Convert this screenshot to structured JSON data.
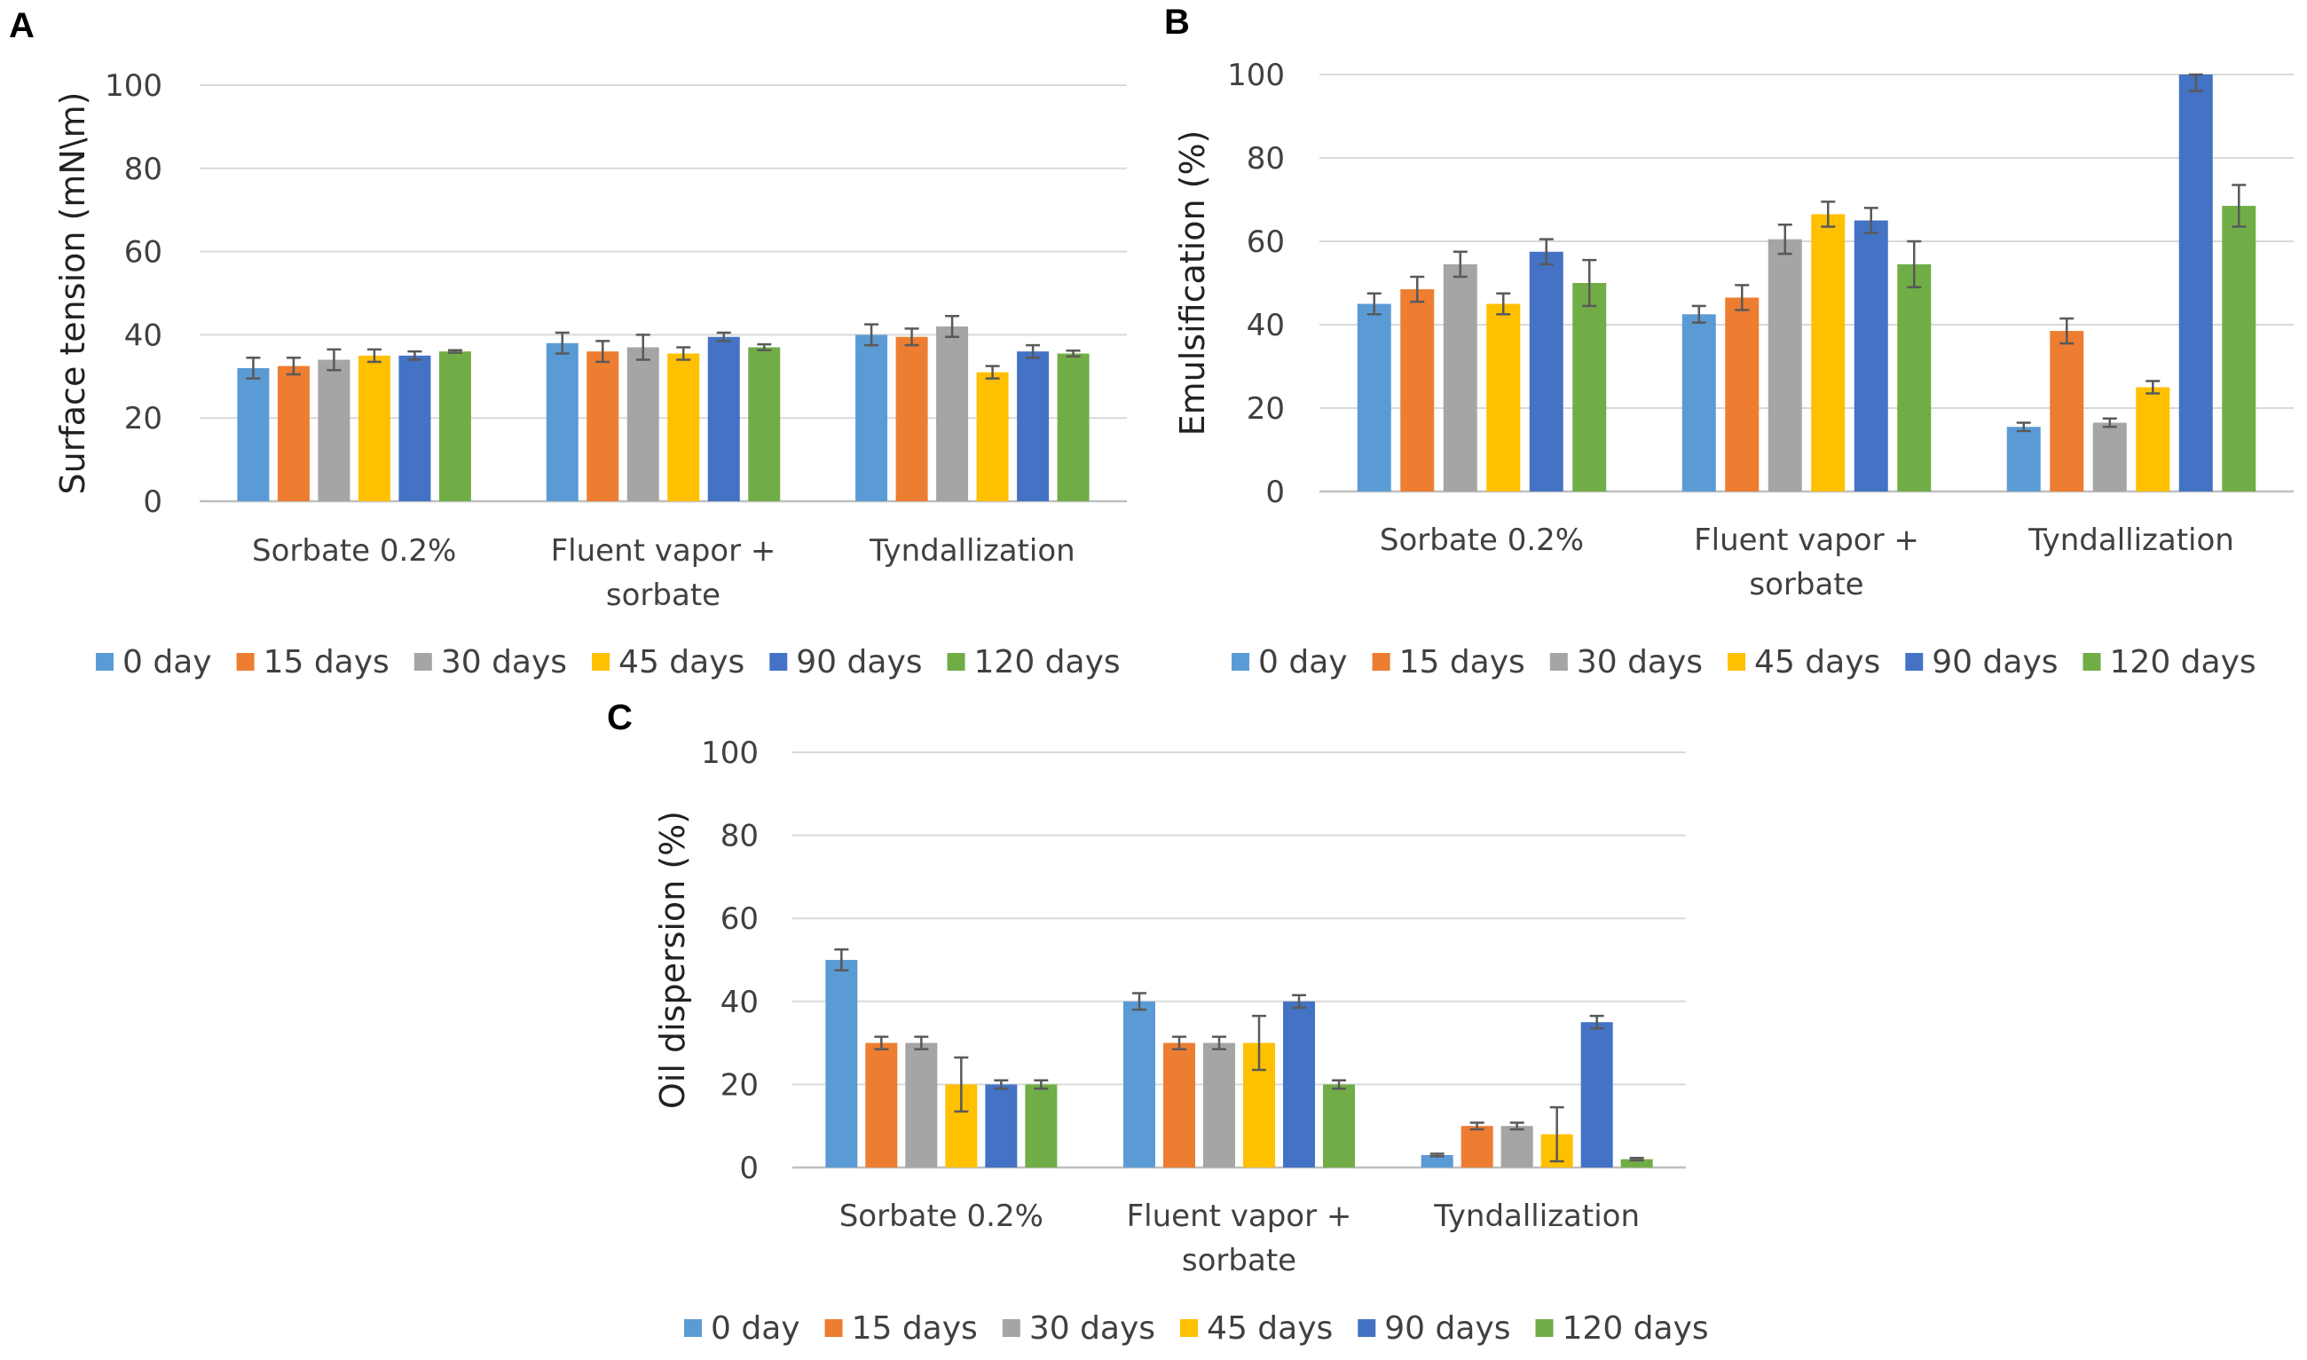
{
  "chart_data": [
    {
      "panel": "A",
      "type": "bar",
      "ylabel": "Surface tension (mN\\m)",
      "ylim": [
        0,
        100
      ],
      "yticks": [
        0,
        20,
        40,
        60,
        80,
        100
      ],
      "categories": [
        [
          "Sorbate 0.2%"
        ],
        [
          "Fluent vapor +",
          "sorbate"
        ],
        [
          "Tyndallization"
        ]
      ],
      "series": [
        {
          "name": "0 day",
          "color": "#5b9bd5",
          "values": [
            32,
            38,
            40
          ],
          "errors": [
            2.5,
            2.5,
            2.5
          ]
        },
        {
          "name": "15 days",
          "color": "#ed7d31",
          "values": [
            32.5,
            36,
            39.5
          ],
          "errors": [
            2,
            2.5,
            2
          ]
        },
        {
          "name": "30 days",
          "color": "#a5a5a5",
          "values": [
            34,
            37,
            42
          ],
          "errors": [
            2.5,
            3,
            2.5
          ]
        },
        {
          "name": "45 days",
          "color": "#ffc000",
          "values": [
            35,
            35.5,
            31
          ],
          "errors": [
            1.5,
            1.5,
            1.5
          ]
        },
        {
          "name": "90 days",
          "color": "#4472c4",
          "values": [
            35,
            39.5,
            36
          ],
          "errors": [
            1,
            1,
            1.5
          ]
        },
        {
          "name": "120 days",
          "color": "#70ad47",
          "values": [
            36,
            37,
            35.5
          ],
          "errors": [
            0.3,
            0.7,
            0.7
          ]
        }
      ],
      "legend": "bottom"
    },
    {
      "panel": "B",
      "type": "bar",
      "ylabel": "Emulsification (%)",
      "ylim": [
        0,
        100
      ],
      "yticks": [
        0,
        20,
        40,
        60,
        80,
        100
      ],
      "categories": [
        [
          "Sorbate 0.2%"
        ],
        [
          "Fluent vapor +",
          "sorbate"
        ],
        [
          "Tyndallization"
        ]
      ],
      "series": [
        {
          "name": "0 day",
          "color": "#5b9bd5",
          "values": [
            45,
            42.5,
            15.5
          ],
          "errors": [
            2.5,
            2,
            1
          ]
        },
        {
          "name": "15 days",
          "color": "#ed7d31",
          "values": [
            48.5,
            46.5,
            38.5
          ],
          "errors": [
            3,
            3,
            3
          ]
        },
        {
          "name": "30 days",
          "color": "#a5a5a5",
          "values": [
            54.5,
            60.5,
            16.5
          ],
          "errors": [
            3,
            3.5,
            1
          ]
        },
        {
          "name": "45 days",
          "color": "#ffc000",
          "values": [
            45,
            66.5,
            25
          ],
          "errors": [
            2.5,
            3,
            1.5
          ]
        },
        {
          "name": "90 days",
          "color": "#4472c4",
          "values": [
            57.5,
            65,
            100
          ],
          "errors": [
            3,
            3,
            4
          ]
        },
        {
          "name": "120 days",
          "color": "#70ad47",
          "values": [
            50,
            54.5,
            68.5
          ],
          "errors": [
            5.5,
            5.5,
            5
          ]
        }
      ],
      "legend": "bottom"
    },
    {
      "panel": "C",
      "type": "bar",
      "ylabel": "Oil dispersion (%)",
      "ylim": [
        0,
        100
      ],
      "yticks": [
        0,
        20,
        40,
        60,
        80,
        100
      ],
      "categories": [
        [
          "Sorbate 0.2%"
        ],
        [
          "Fluent vapor +",
          "sorbate"
        ],
        [
          "Tyndallization"
        ]
      ],
      "series": [
        {
          "name": "0 day",
          "color": "#5b9bd5",
          "values": [
            50,
            40,
            3
          ],
          "errors": [
            2.5,
            2,
            0.3
          ]
        },
        {
          "name": "15 days",
          "color": "#ed7d31",
          "values": [
            30,
            30,
            10
          ],
          "errors": [
            1.5,
            1.5,
            0.8
          ]
        },
        {
          "name": "30 days",
          "color": "#a5a5a5",
          "values": [
            30,
            30,
            10
          ],
          "errors": [
            1.5,
            1.5,
            0.8
          ]
        },
        {
          "name": "45 days",
          "color": "#ffc000",
          "values": [
            20,
            30,
            8
          ],
          "errors": [
            6.5,
            6.5,
            6.5
          ]
        },
        {
          "name": "90 days",
          "color": "#4472c4",
          "values": [
            20,
            40,
            35
          ],
          "errors": [
            1,
            1.5,
            1.5
          ]
        },
        {
          "name": "120 days",
          "color": "#70ad47",
          "values": [
            20,
            20,
            2
          ],
          "errors": [
            1,
            1,
            0.3
          ]
        }
      ],
      "legend": "bottom"
    }
  ]
}
